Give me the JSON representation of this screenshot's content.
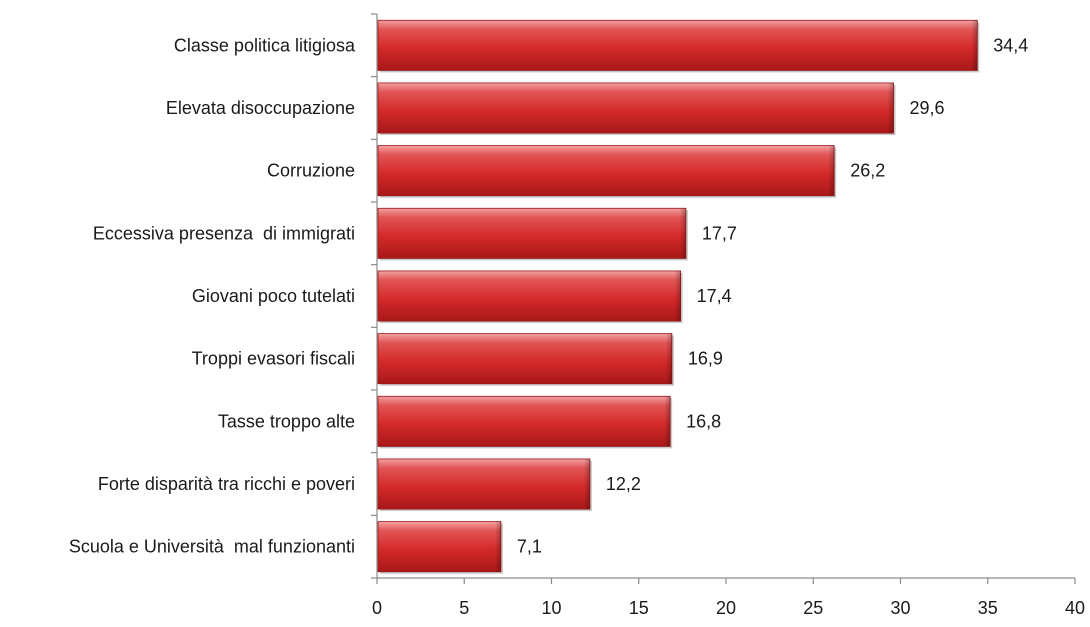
{
  "chart_data": {
    "type": "bar",
    "orientation": "horizontal",
    "categories": [
      "Classe politica litigiosa",
      "Elevata disoccupazione",
      "Corruzione",
      "Eccessiva presenza  di immigrati",
      "Giovani poco tutelati",
      "Troppi evasori fiscali",
      "Tasse troppo alte",
      "Forte disparità tra ricchi e poveri",
      "Scuola e Università  mal funzionanti"
    ],
    "values": [
      34.4,
      29.6,
      26.2,
      17.7,
      17.4,
      16.9,
      16.8,
      12.2,
      7.1
    ],
    "value_labels": [
      "34,4",
      "29,6",
      "26,2",
      "17,7",
      "17,4",
      "16,9",
      "16,8",
      "12,2",
      "7,1"
    ],
    "xlim": [
      0,
      40
    ],
    "x_ticks": [
      "0",
      "5",
      "10",
      "15",
      "20",
      "25",
      "30",
      "35",
      "40"
    ],
    "grid": false,
    "bar_color": "#d42a2a",
    "title": "",
    "xlabel": "",
    "ylabel": ""
  }
}
